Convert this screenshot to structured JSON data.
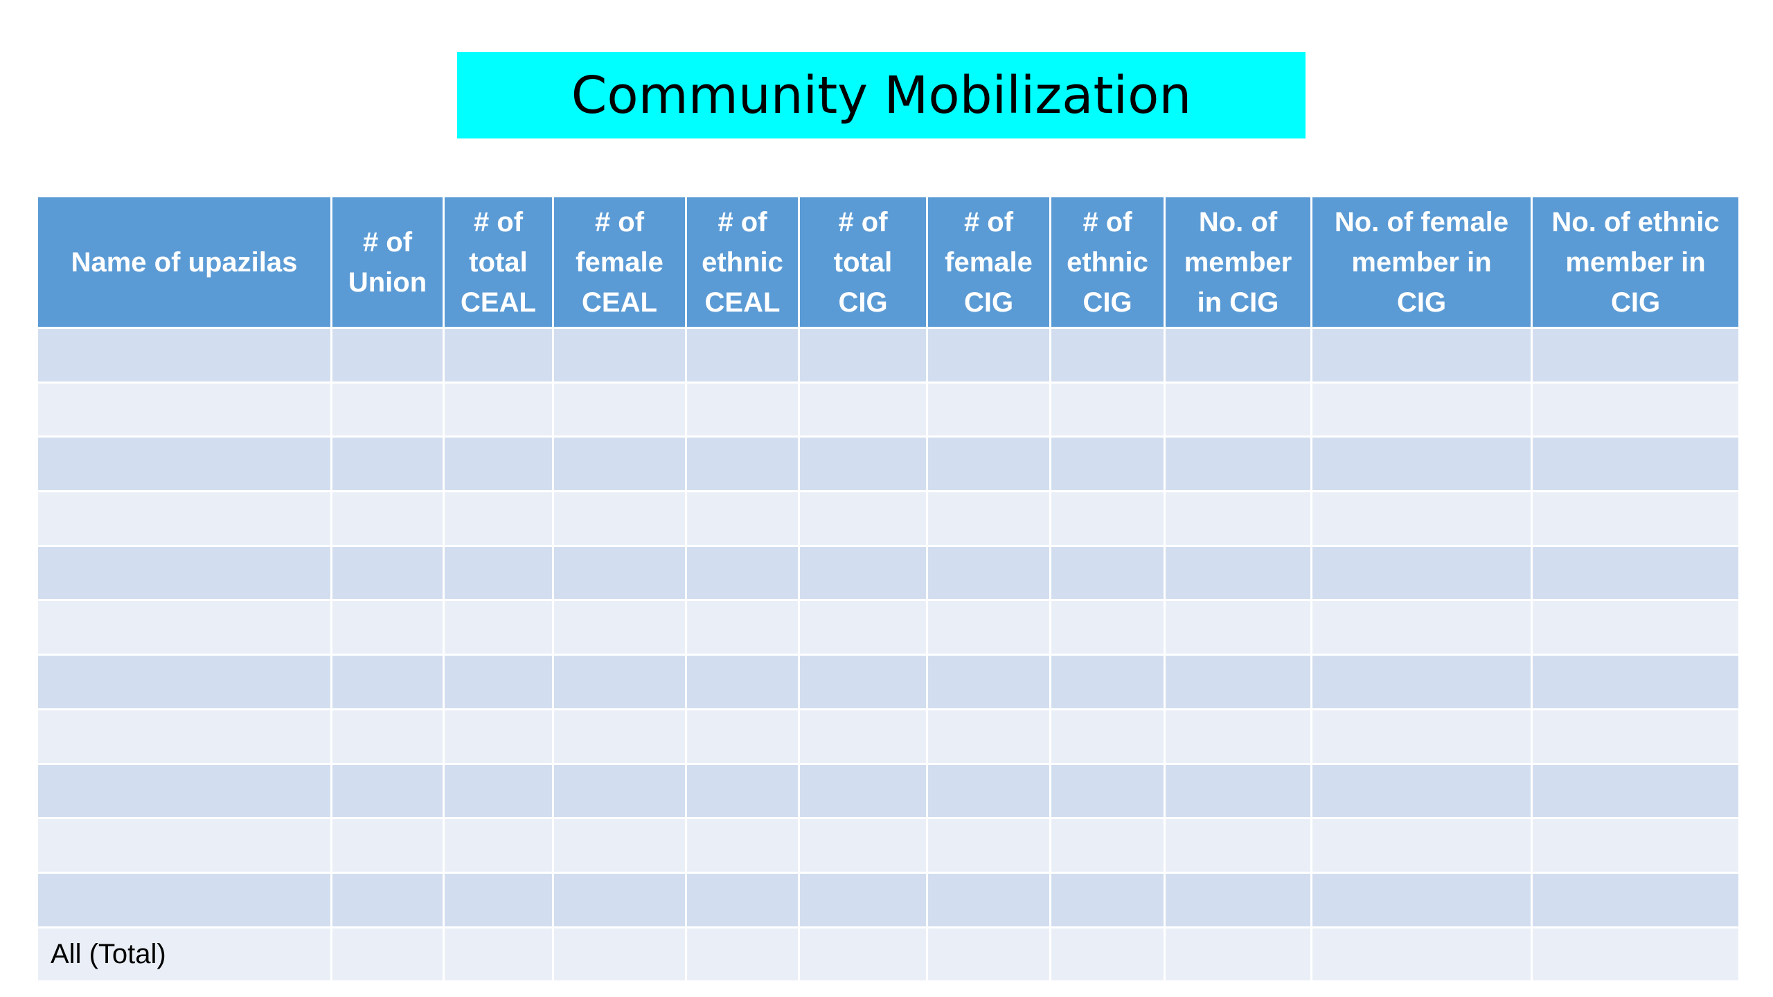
{
  "slide": {
    "title": "Community Mobilization",
    "title_bg": "#00ffff",
    "header_bg": "#5b9bd5",
    "row_odd_bg": "#d2deef",
    "row_even_bg": "#eaeff7"
  },
  "table": {
    "headers": [
      "Name of upazilas",
      "# of\nUnion",
      "# of\ntotal\nCEAL",
      "# of\nfemale\nCEAL",
      "# of\nethnic\nCEAL",
      "# of\ntotal\nCIG",
      "# of\nfemale\nCIG",
      "# of\nethnic\nCIG",
      "No. of\nmember\nin CIG",
      "No. of female\nmember in\nCIG",
      "No. of ethnic\nmember in\nCIG"
    ],
    "empty_rows": 11,
    "total_label": "All (Total)"
  }
}
